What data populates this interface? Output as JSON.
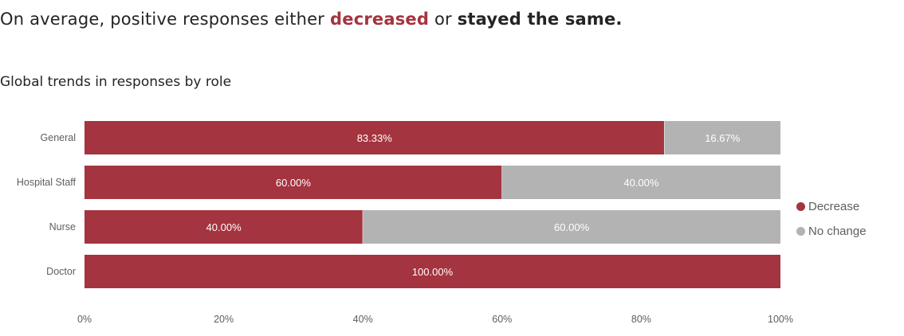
{
  "headline": {
    "prefix": "On average, positive responses either ",
    "decreased": "decreased",
    "middle": " or ",
    "same": "stayed the same."
  },
  "chart_data": {
    "type": "bar",
    "orientation": "horizontal",
    "stacked": "100%",
    "title": "Global trends in responses by role",
    "categories": [
      "General",
      "Hospital Staff",
      "Nurse",
      "Doctor"
    ],
    "series": [
      {
        "name": "Decrease",
        "color": "#a4343f",
        "values": [
          83.33,
          60.0,
          40.0,
          100.0
        ],
        "labels": [
          "83.33%",
          "60.00%",
          "40.00%",
          "100.00%"
        ]
      },
      {
        "name": "No change",
        "color": "#b3b3b3",
        "values": [
          16.67,
          40.0,
          60.0,
          0
        ],
        "labels": [
          "16.67%",
          "40.00%",
          "60.00%",
          ""
        ]
      }
    ],
    "xlim": [
      0,
      100
    ],
    "x_ticks": [
      "0%",
      "20%",
      "40%",
      "60%",
      "80%",
      "100%"
    ],
    "legend_position": "right",
    "grid": false
  }
}
